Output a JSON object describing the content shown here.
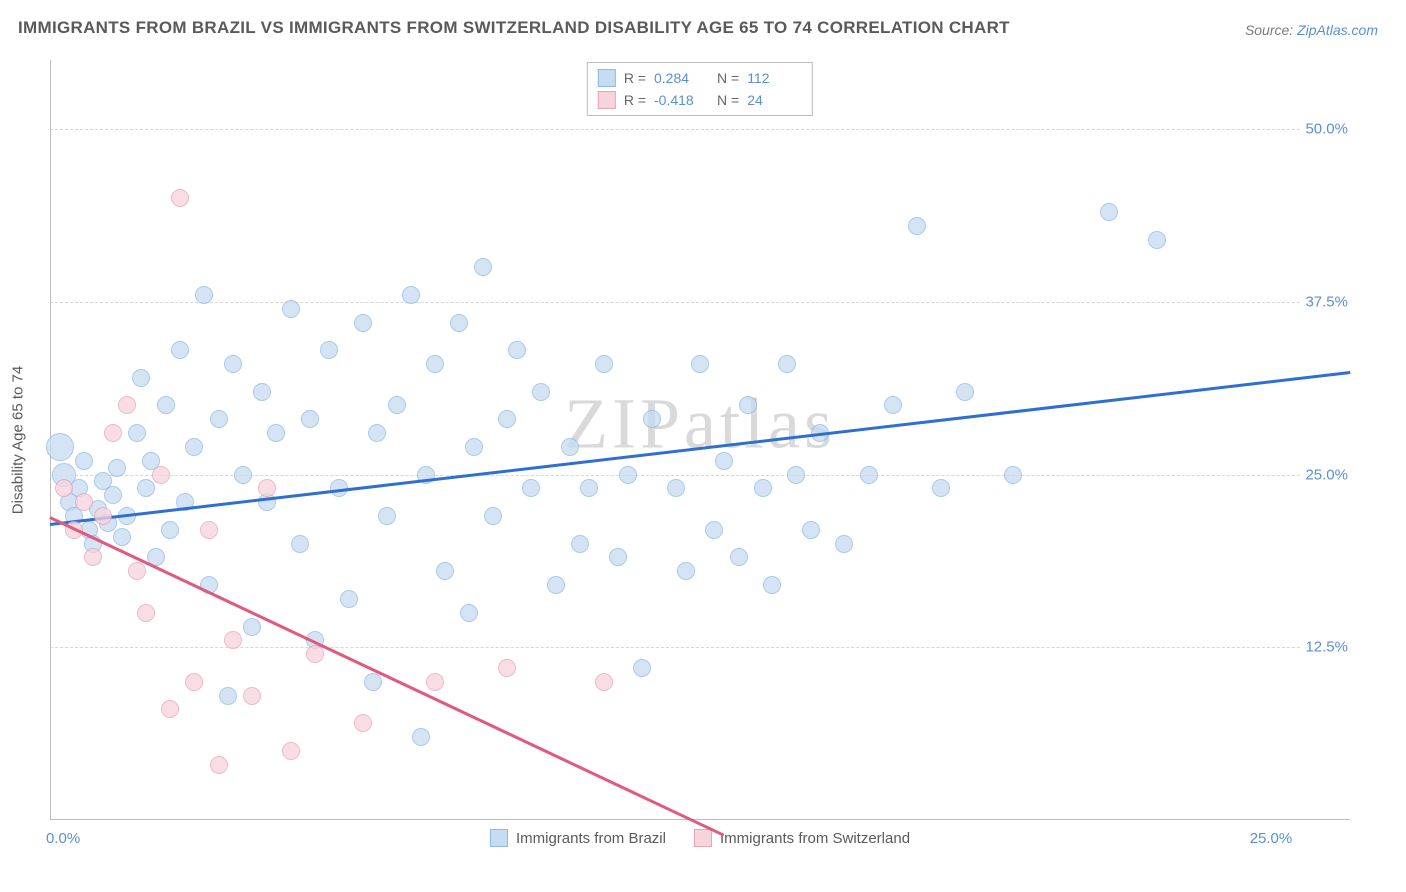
{
  "title": "IMMIGRANTS FROM BRAZIL VS IMMIGRANTS FROM SWITZERLAND DISABILITY AGE 65 TO 74 CORRELATION CHART",
  "source_label": "Source:",
  "source_name": "ZipAtlas.com",
  "watermark": "ZIPatlas",
  "y_axis_title": "Disability Age 65 to 74",
  "chart": {
    "type": "scatter",
    "xlim": [
      0,
      27
    ],
    "ylim": [
      0,
      55
    ],
    "x_ticks": [
      {
        "v": 0,
        "label": "0.0%"
      },
      {
        "v": 25,
        "label": "25.0%"
      }
    ],
    "y_ticks": [
      {
        "v": 12.5,
        "label": "12.5%"
      },
      {
        "v": 25,
        "label": "25.0%"
      },
      {
        "v": 37.5,
        "label": "37.5%"
      },
      {
        "v": 50,
        "label": "50.0%"
      }
    ],
    "grid_color": "#d6d6d6",
    "background_color": "#ffffff",
    "series": [
      {
        "name": "Immigrants from Brazil",
        "marker_fill": "#c6dcf2",
        "marker_stroke": "#8fb8e2",
        "marker_opacity": 0.75,
        "marker_radius": 9,
        "trend_color": "#2f6fd0",
        "trend": {
          "x1": 0,
          "y1": 21.5,
          "x2": 27,
          "y2": 32.5
        },
        "R": "0.284",
        "N": "112",
        "points": [
          {
            "x": 0.2,
            "y": 27,
            "r": 14
          },
          {
            "x": 0.3,
            "y": 25,
            "r": 12
          },
          {
            "x": 0.4,
            "y": 23
          },
          {
            "x": 0.5,
            "y": 22
          },
          {
            "x": 0.6,
            "y": 24
          },
          {
            "x": 0.7,
            "y": 26
          },
          {
            "x": 0.8,
            "y": 21
          },
          {
            "x": 0.9,
            "y": 20
          },
          {
            "x": 1.0,
            "y": 22.5
          },
          {
            "x": 1.1,
            "y": 24.5
          },
          {
            "x": 1.2,
            "y": 21.5
          },
          {
            "x": 1.3,
            "y": 23.5
          },
          {
            "x": 1.4,
            "y": 25.5
          },
          {
            "x": 1.5,
            "y": 20.5
          },
          {
            "x": 1.6,
            "y": 22
          },
          {
            "x": 1.8,
            "y": 28
          },
          {
            "x": 1.9,
            "y": 32
          },
          {
            "x": 2.0,
            "y": 24
          },
          {
            "x": 2.1,
            "y": 26
          },
          {
            "x": 2.2,
            "y": 19
          },
          {
            "x": 2.4,
            "y": 30
          },
          {
            "x": 2.5,
            "y": 21
          },
          {
            "x": 2.7,
            "y": 34
          },
          {
            "x": 2.8,
            "y": 23
          },
          {
            "x": 3.0,
            "y": 27
          },
          {
            "x": 3.2,
            "y": 38
          },
          {
            "x": 3.3,
            "y": 17
          },
          {
            "x": 3.5,
            "y": 29
          },
          {
            "x": 3.7,
            "y": 9
          },
          {
            "x": 3.8,
            "y": 33
          },
          {
            "x": 4.0,
            "y": 25
          },
          {
            "x": 4.2,
            "y": 14
          },
          {
            "x": 4.4,
            "y": 31
          },
          {
            "x": 4.5,
            "y": 23
          },
          {
            "x": 4.7,
            "y": 28
          },
          {
            "x": 5.0,
            "y": 37
          },
          {
            "x": 5.2,
            "y": 20
          },
          {
            "x": 5.4,
            "y": 29
          },
          {
            "x": 5.5,
            "y": 13
          },
          {
            "x": 5.8,
            "y": 34
          },
          {
            "x": 6.0,
            "y": 24
          },
          {
            "x": 6.2,
            "y": 16
          },
          {
            "x": 6.5,
            "y": 36
          },
          {
            "x": 6.7,
            "y": 10
          },
          {
            "x": 6.8,
            "y": 28
          },
          {
            "x": 7.0,
            "y": 22
          },
          {
            "x": 7.2,
            "y": 30
          },
          {
            "x": 7.5,
            "y": 38
          },
          {
            "x": 7.7,
            "y": 6
          },
          {
            "x": 7.8,
            "y": 25
          },
          {
            "x": 8.0,
            "y": 33
          },
          {
            "x": 8.2,
            "y": 18
          },
          {
            "x": 8.5,
            "y": 36
          },
          {
            "x": 8.7,
            "y": 15
          },
          {
            "x": 8.8,
            "y": 27
          },
          {
            "x": 9.0,
            "y": 40
          },
          {
            "x": 9.2,
            "y": 22
          },
          {
            "x": 9.5,
            "y": 29
          },
          {
            "x": 9.7,
            "y": 34
          },
          {
            "x": 10.0,
            "y": 24
          },
          {
            "x": 10.2,
            "y": 31
          },
          {
            "x": 10.5,
            "y": 17
          },
          {
            "x": 10.8,
            "y": 27
          },
          {
            "x": 11.0,
            "y": 20
          },
          {
            "x": 11.2,
            "y": 24
          },
          {
            "x": 11.5,
            "y": 33
          },
          {
            "x": 11.8,
            "y": 19
          },
          {
            "x": 12.0,
            "y": 25
          },
          {
            "x": 12.3,
            "y": 11
          },
          {
            "x": 12.5,
            "y": 29
          },
          {
            "x": 13.0,
            "y": 24
          },
          {
            "x": 13.2,
            "y": 18
          },
          {
            "x": 13.5,
            "y": 33
          },
          {
            "x": 13.8,
            "y": 21
          },
          {
            "x": 14.0,
            "y": 26
          },
          {
            "x": 14.3,
            "y": 19
          },
          {
            "x": 14.5,
            "y": 30
          },
          {
            "x": 14.8,
            "y": 24
          },
          {
            "x": 15.0,
            "y": 17
          },
          {
            "x": 15.3,
            "y": 33
          },
          {
            "x": 15.5,
            "y": 25
          },
          {
            "x": 15.8,
            "y": 21
          },
          {
            "x": 16.0,
            "y": 28
          },
          {
            "x": 16.5,
            "y": 20
          },
          {
            "x": 17.0,
            "y": 25
          },
          {
            "x": 17.5,
            "y": 30
          },
          {
            "x": 18.0,
            "y": 43
          },
          {
            "x": 18.5,
            "y": 24
          },
          {
            "x": 19.0,
            "y": 31
          },
          {
            "x": 20.0,
            "y": 25
          },
          {
            "x": 22.0,
            "y": 44
          },
          {
            "x": 23.0,
            "y": 42
          }
        ]
      },
      {
        "name": "Immigrants from Switzerland",
        "marker_fill": "#f6d4dc",
        "marker_stroke": "#e9a3b5",
        "marker_opacity": 0.75,
        "marker_radius": 9,
        "trend_color": "#e05a7d",
        "trend": {
          "x1": 0,
          "y1": 22,
          "x2": 14,
          "y2": -1
        },
        "R": "-0.418",
        "N": "24",
        "points": [
          {
            "x": 0.3,
            "y": 24
          },
          {
            "x": 0.5,
            "y": 21
          },
          {
            "x": 0.7,
            "y": 23
          },
          {
            "x": 0.9,
            "y": 19
          },
          {
            "x": 1.1,
            "y": 22
          },
          {
            "x": 1.3,
            "y": 28
          },
          {
            "x": 1.6,
            "y": 30
          },
          {
            "x": 1.8,
            "y": 18
          },
          {
            "x": 2.0,
            "y": 15
          },
          {
            "x": 2.3,
            "y": 25
          },
          {
            "x": 2.5,
            "y": 8
          },
          {
            "x": 2.7,
            "y": 45
          },
          {
            "x": 3.0,
            "y": 10
          },
          {
            "x": 3.3,
            "y": 21
          },
          {
            "x": 3.5,
            "y": 4
          },
          {
            "x": 3.8,
            "y": 13
          },
          {
            "x": 4.2,
            "y": 9
          },
          {
            "x": 4.5,
            "y": 24
          },
          {
            "x": 5.0,
            "y": 5
          },
          {
            "x": 5.5,
            "y": 12
          },
          {
            "x": 6.5,
            "y": 7
          },
          {
            "x": 8.0,
            "y": 10
          },
          {
            "x": 9.5,
            "y": 11
          },
          {
            "x": 11.5,
            "y": 10
          }
        ]
      }
    ]
  },
  "legend_top": {
    "r_label": "R =",
    "n_label": "N ="
  },
  "legend_bottom": [
    {
      "label": "Immigrants from Brazil",
      "fill": "#c6dcf2",
      "stroke": "#8fb8e2"
    },
    {
      "label": "Immigrants from Switzerland",
      "fill": "#f6d4dc",
      "stroke": "#e9a3b5"
    }
  ]
}
